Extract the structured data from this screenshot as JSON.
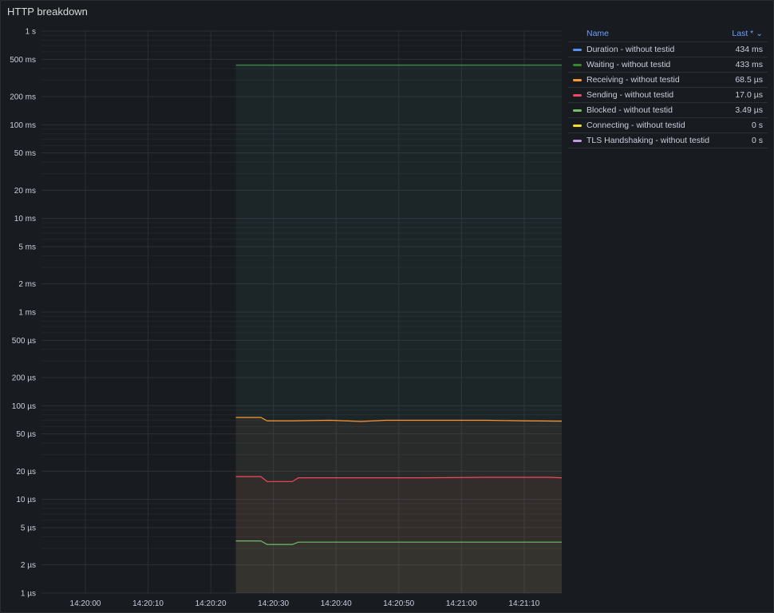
{
  "panel": {
    "title": "HTTP breakdown"
  },
  "legend": {
    "name_header": "Name",
    "value_header": "Last * ⌄",
    "items": [
      {
        "name": "Duration - without testid",
        "value": "434 ms",
        "color": "#5794f2"
      },
      {
        "name": "Waiting - without testid",
        "value": "433 ms",
        "color": "#37872d"
      },
      {
        "name": "Receiving - without testid",
        "value": "68.5 µs",
        "color": "#ff9830"
      },
      {
        "name": "Sending - without testid",
        "value": "17.0 µs",
        "color": "#f2495c"
      },
      {
        "name": "Blocked - without testid",
        "value": "3.49 µs",
        "color": "#73bf69"
      },
      {
        "name": "Connecting - without testid",
        "value": "0 s",
        "color": "#fade2a"
      },
      {
        "name": "TLS Handshaking - without testid",
        "value": "0 s",
        "color": "#ca95e5"
      }
    ]
  },
  "chart_data": {
    "type": "area",
    "title": "HTTP breakdown",
    "y_scale": "log",
    "y_unit": "seconds",
    "ylim": [
      1e-06,
      1
    ],
    "xlim": [
      "14:19:53",
      "14:21:16"
    ],
    "y_ticks": [
      {
        "label": "1 s",
        "value": 1
      },
      {
        "label": "500 ms",
        "value": 0.5
      },
      {
        "label": "200 ms",
        "value": 0.2
      },
      {
        "label": "100 ms",
        "value": 0.1
      },
      {
        "label": "50 ms",
        "value": 0.05
      },
      {
        "label": "20 ms",
        "value": 0.02
      },
      {
        "label": "10 ms",
        "value": 0.01
      },
      {
        "label": "5 ms",
        "value": 0.005
      },
      {
        "label": "2 ms",
        "value": 0.002
      },
      {
        "label": "1 ms",
        "value": 0.001
      },
      {
        "label": "500 µs",
        "value": 0.0005
      },
      {
        "label": "200 µs",
        "value": 0.0002
      },
      {
        "label": "100 µs",
        "value": 0.0001
      },
      {
        "label": "50 µs",
        "value": 5e-05
      },
      {
        "label": "20 µs",
        "value": 2e-05
      },
      {
        "label": "10 µs",
        "value": 1e-05
      },
      {
        "label": "5 µs",
        "value": 5e-06
      },
      {
        "label": "2 µs",
        "value": 2e-06
      },
      {
        "label": "1 µs",
        "value": 1e-06
      }
    ],
    "x_ticks": [
      "14:20:00",
      "14:20:10",
      "14:20:20",
      "14:20:30",
      "14:20:40",
      "14:20:50",
      "14:21:00",
      "14:21:10"
    ],
    "grid": true,
    "legend_position": "right",
    "series": [
      {
        "name": "Duration - without testid",
        "color": "#5794f2",
        "x": [
          "14:20:24",
          "14:20:34",
          "14:20:44",
          "14:20:54",
          "14:21:04",
          "14:21:14",
          "14:21:16"
        ],
        "values": [
          0.434,
          0.434,
          0.434,
          0.434,
          0.434,
          0.434,
          0.434
        ]
      },
      {
        "name": "Waiting - without testid",
        "color": "#37872d",
        "x": [
          "14:20:24",
          "14:20:34",
          "14:20:44",
          "14:20:54",
          "14:21:04",
          "14:21:14",
          "14:21:16"
        ],
        "values": [
          0.433,
          0.433,
          0.433,
          0.433,
          0.433,
          0.433,
          0.433
        ]
      },
      {
        "name": "Receiving - without testid",
        "color": "#ff9830",
        "x": [
          "14:20:24",
          "14:20:28",
          "14:20:29",
          "14:20:33",
          "14:20:39",
          "14:20:44",
          "14:20:48",
          "14:20:54",
          "14:21:04",
          "14:21:10",
          "14:21:16"
        ],
        "values": [
          7.5e-05,
          7.5e-05,
          6.9e-05,
          6.9e-05,
          7e-05,
          6.8e-05,
          7e-05,
          7e-05,
          7e-05,
          6.9e-05,
          6.85e-05
        ]
      },
      {
        "name": "Sending - without testid",
        "color": "#f2495c",
        "x": [
          "14:20:24",
          "14:20:28",
          "14:20:29",
          "14:20:33",
          "14:20:34",
          "14:20:44",
          "14:20:54",
          "14:21:04",
          "14:21:14",
          "14:21:16"
        ],
        "values": [
          1.75e-05,
          1.75e-05,
          1.55e-05,
          1.55e-05,
          1.7e-05,
          1.7e-05,
          1.7e-05,
          1.72e-05,
          1.72e-05,
          1.7e-05
        ]
      },
      {
        "name": "Blocked - without testid",
        "color": "#73bf69",
        "x": [
          "14:20:24",
          "14:20:28",
          "14:20:29",
          "14:20:33",
          "14:20:34",
          "14:20:44",
          "14:20:54",
          "14:21:04",
          "14:21:14",
          "14:21:16"
        ],
        "values": [
          3.6e-06,
          3.6e-06,
          3.3e-06,
          3.3e-06,
          3.5e-06,
          3.5e-06,
          3.5e-06,
          3.5e-06,
          3.5e-06,
          3.5e-06
        ]
      },
      {
        "name": "Connecting - without testid",
        "color": "#fade2a",
        "x": [],
        "values": []
      },
      {
        "name": "TLS Handshaking - without testid",
        "color": "#ca95e5",
        "x": [],
        "values": []
      }
    ]
  }
}
